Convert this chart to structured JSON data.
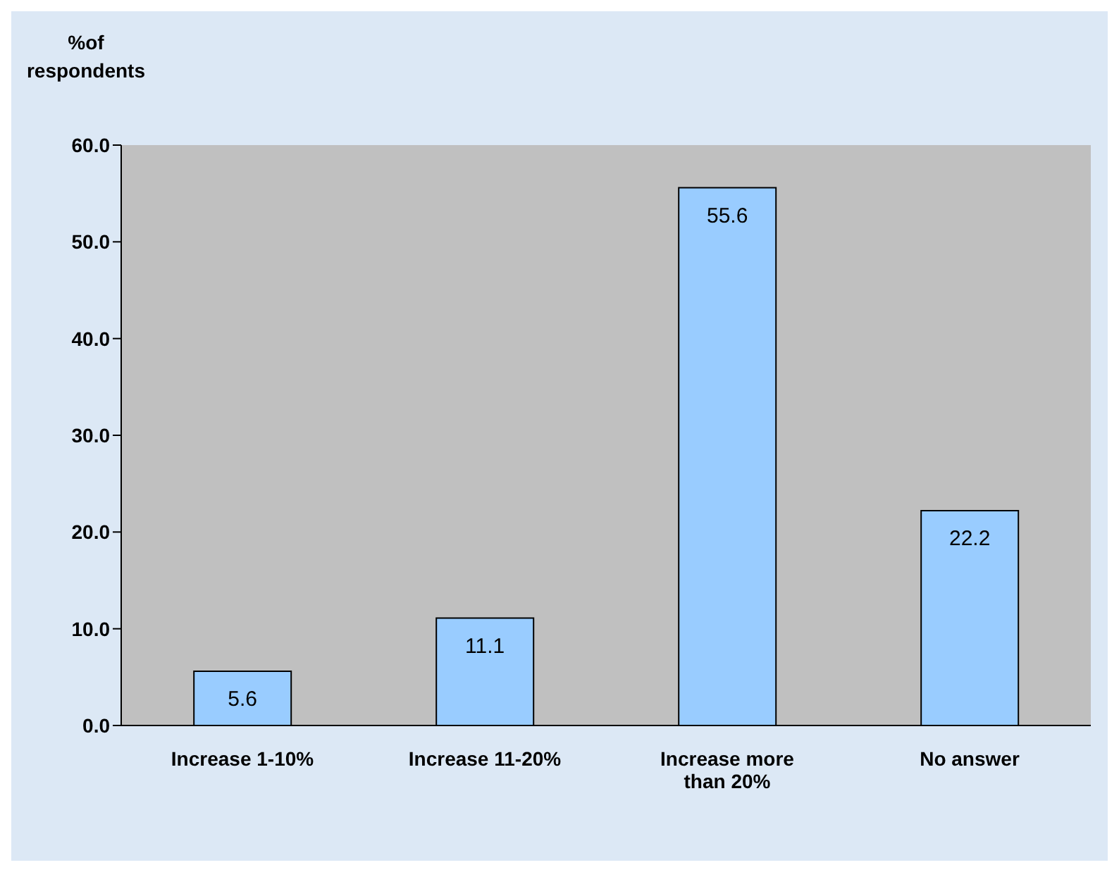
{
  "chart_data": {
    "type": "bar",
    "ylabel": "%of respondents",
    "categories": [
      "Increase 1-10%",
      "Increase 11-20%",
      "Increase more than 20%",
      "No answer"
    ],
    "values": [
      5.6,
      11.1,
      55.6,
      22.2
    ],
    "color": "#99ccff",
    "ylim": [
      0,
      60
    ],
    "yticks": [
      {
        "value": 0,
        "label": "0.0"
      },
      {
        "value": 10,
        "label": "10.0"
      },
      {
        "value": 20,
        "label": "20.0"
      },
      {
        "value": 30,
        "label": "30.0"
      },
      {
        "value": 40,
        "label": "40.0"
      },
      {
        "value": 50,
        "label": "50.0"
      },
      {
        "value": 60,
        "label": "60.0"
      }
    ],
    "data_labels": true,
    "grid": false,
    "legend": false
  }
}
